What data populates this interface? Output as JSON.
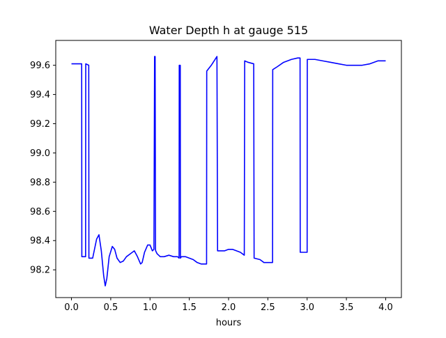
{
  "chart_data": {
    "type": "line",
    "title": "Water Depth h at gauge 515",
    "xlabel": "hours",
    "ylabel": "",
    "xlim": [
      -0.2,
      4.2
    ],
    "ylim": [
      98.01,
      99.77
    ],
    "grid": false,
    "x_ticks": [
      0.0,
      0.5,
      1.0,
      1.5,
      2.0,
      2.5,
      3.0,
      3.5,
      4.0
    ],
    "x_tick_labels": [
      "0.0",
      "0.5",
      "1.0",
      "1.5",
      "2.0",
      "2.5",
      "3.0",
      "3.5",
      "4.0"
    ],
    "y_ticks": [
      98.2,
      98.4,
      98.6,
      98.8,
      99.0,
      99.2,
      99.4,
      99.6
    ],
    "y_tick_labels": [
      "98.2",
      "98.4",
      "98.6",
      "98.8",
      "99.0",
      "99.2",
      "99.4",
      "99.6"
    ],
    "series": [
      {
        "color": "#0000ff",
        "x": [
          0.0,
          0.06,
          0.13,
          0.132,
          0.18,
          0.182,
          0.22,
          0.222,
          0.27,
          0.32,
          0.35,
          0.38,
          0.41,
          0.43,
          0.45,
          0.48,
          0.52,
          0.55,
          0.58,
          0.62,
          0.66,
          0.7,
          0.75,
          0.8,
          0.84,
          0.88,
          0.9,
          0.93,
          0.97,
          1.0,
          1.03,
          1.05,
          1.058,
          1.065,
          1.07,
          1.072,
          1.09,
          1.13,
          1.18,
          1.24,
          1.3,
          1.35,
          1.37,
          1.372,
          1.385,
          1.387,
          1.4,
          1.45,
          1.5,
          1.55,
          1.6,
          1.65,
          1.7,
          1.72,
          1.722,
          1.78,
          1.84,
          1.852,
          1.86,
          1.9,
          1.95,
          2.0,
          2.05,
          2.1,
          2.15,
          2.2,
          2.205,
          2.25,
          2.32,
          2.325,
          2.4,
          2.45,
          2.5,
          2.56,
          2.562,
          2.62,
          2.7,
          2.8,
          2.88,
          2.91,
          2.912,
          2.99,
          3.0,
          3.002,
          3.1,
          3.2,
          3.3,
          3.4,
          3.5,
          3.6,
          3.7,
          3.8,
          3.9,
          4.0
        ],
        "y": [
          99.61,
          99.61,
          99.61,
          98.29,
          98.29,
          99.61,
          99.6,
          98.28,
          98.28,
          98.41,
          98.44,
          98.33,
          98.16,
          98.09,
          98.14,
          98.29,
          98.36,
          98.34,
          98.28,
          98.25,
          98.26,
          98.29,
          98.31,
          98.33,
          98.29,
          98.24,
          98.25,
          98.32,
          98.37,
          98.37,
          98.33,
          98.34,
          99.66,
          99.66,
          98.34,
          98.33,
          98.31,
          98.29,
          98.29,
          98.3,
          98.29,
          98.29,
          98.28,
          99.6,
          99.6,
          98.28,
          98.29,
          98.29,
          98.28,
          98.27,
          98.25,
          98.24,
          98.24,
          98.24,
          99.56,
          99.6,
          99.65,
          99.66,
          98.33,
          98.33,
          98.33,
          98.34,
          98.34,
          98.33,
          98.32,
          98.3,
          99.63,
          99.62,
          99.61,
          98.28,
          98.27,
          98.25,
          98.25,
          98.25,
          99.57,
          99.59,
          99.62,
          99.64,
          99.65,
          99.65,
          98.32,
          98.32,
          98.32,
          99.64,
          99.64,
          99.63,
          99.62,
          99.61,
          99.6,
          99.6,
          99.6,
          99.61,
          99.63,
          99.63
        ]
      }
    ]
  }
}
